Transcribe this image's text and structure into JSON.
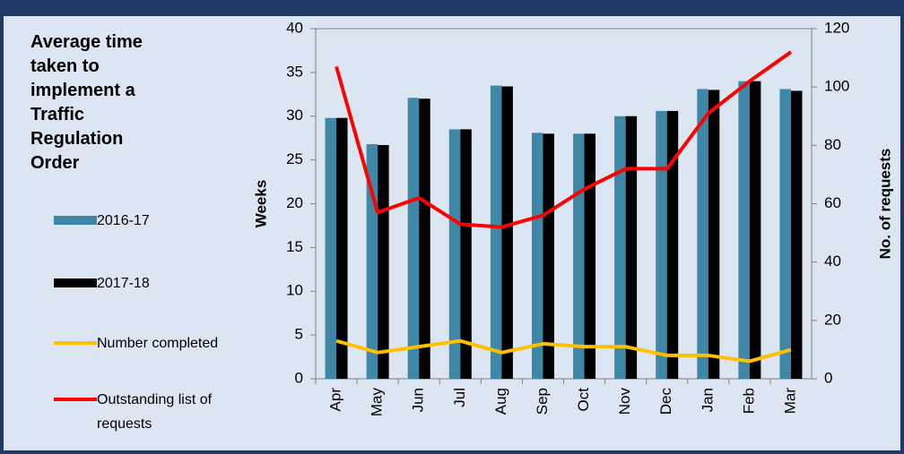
{
  "chart_data": {
    "type": "bar",
    "title": "Average time taken to implement a Traffic Regulation Order",
    "ylabel": "Weeks",
    "y2label": "No. of requests",
    "categories": [
      "Apr",
      "May",
      "Jun",
      "Jul",
      "Aug",
      "Sep",
      "Oct",
      "Nov",
      "Dec",
      "Jan",
      "Feb",
      "Mar"
    ],
    "series": [
      {
        "name": "2016-17",
        "type": "bar",
        "color": "#3f87a6",
        "values": [
          29.8,
          26.8,
          32.1,
          28.5,
          33.5,
          28.1,
          28.0,
          30.0,
          30.6,
          33.1,
          34.0,
          33.1
        ]
      },
      {
        "name": "2017-18",
        "type": "bar",
        "color": "#000000",
        "values": [
          29.8,
          26.7,
          32.0,
          28.5,
          33.4,
          28.0,
          28.0,
          30.0,
          30.6,
          33.0,
          34.0,
          32.9
        ]
      },
      {
        "name": "Number completed",
        "type": "line",
        "axis": "y2",
        "color": "#ffc000",
        "values": [
          13,
          9,
          11,
          13,
          9,
          12,
          11,
          11,
          8,
          8,
          6,
          10
        ]
      },
      {
        "name": "Outstanding list of requests",
        "type": "line",
        "axis": "y2",
        "color": "#ff0000",
        "values": [
          107,
          57,
          62,
          53,
          52,
          56,
          65,
          72,
          72,
          91,
          102,
          112
        ]
      }
    ],
    "ylim": [
      0,
      40
    ],
    "yticks": [
      0,
      5,
      10,
      15,
      20,
      25,
      30,
      35,
      40
    ],
    "y2lim": [
      0,
      120
    ],
    "y2ticks": [
      0,
      20,
      40,
      60,
      80,
      100,
      120
    ],
    "grid": false
  }
}
